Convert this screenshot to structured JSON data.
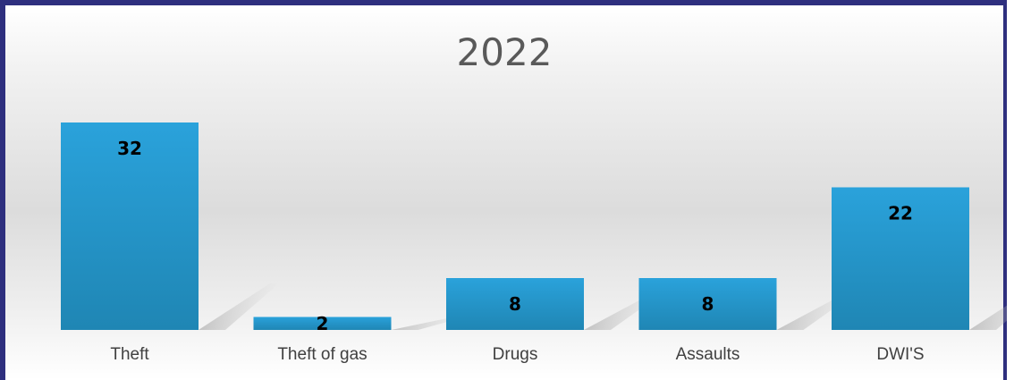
{
  "chart_data": {
    "type": "bar",
    "title": "2022",
    "xlabel": "",
    "ylabel": "",
    "categories": [
      "Theft",
      "Theft of gas",
      "Drugs",
      "Assaults",
      "DWI'S"
    ],
    "values": [
      32,
      2,
      8,
      8,
      22
    ],
    "ylim": [
      0,
      32
    ],
    "grid": false,
    "legend": "none",
    "colors": {
      "bar_top": "#2aa2db",
      "bar_bottom": "#1f86b4",
      "label": "#000000",
      "axis_text": "#404040",
      "title": "#595959",
      "frame": "#2e2f7e"
    }
  }
}
